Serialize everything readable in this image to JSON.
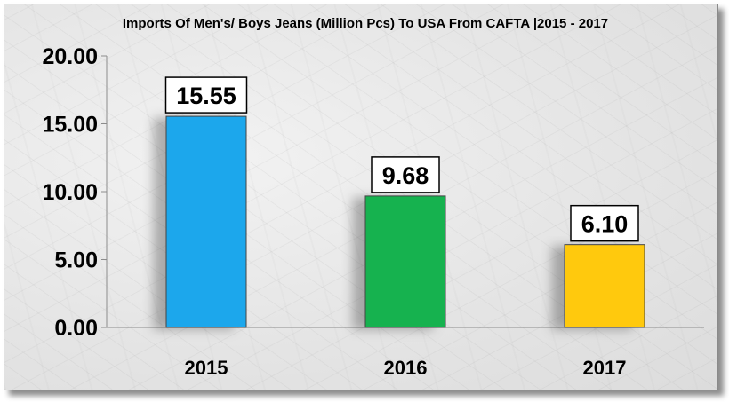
{
  "chart_data": {
    "type": "bar",
    "title": "Imports Of Men's/ Boys Jeans (Million Pcs) To USA From CAFTA  |2015 - 2017",
    "categories": [
      "2015",
      "2016",
      "2017"
    ],
    "values": [
      15.55,
      9.68,
      6.1
    ],
    "data_labels": [
      "15.55",
      "9.68",
      "6.10"
    ],
    "bar_colors": [
      "#1aa7ec",
      "#12b24f",
      "#ffc90e"
    ],
    "yticks": [
      "0.00",
      "5.00",
      "10.00",
      "15.00",
      "20.00"
    ],
    "ylim": [
      0,
      20
    ],
    "xlabel": "",
    "ylabel": "",
    "grid": false,
    "legend": "none"
  }
}
